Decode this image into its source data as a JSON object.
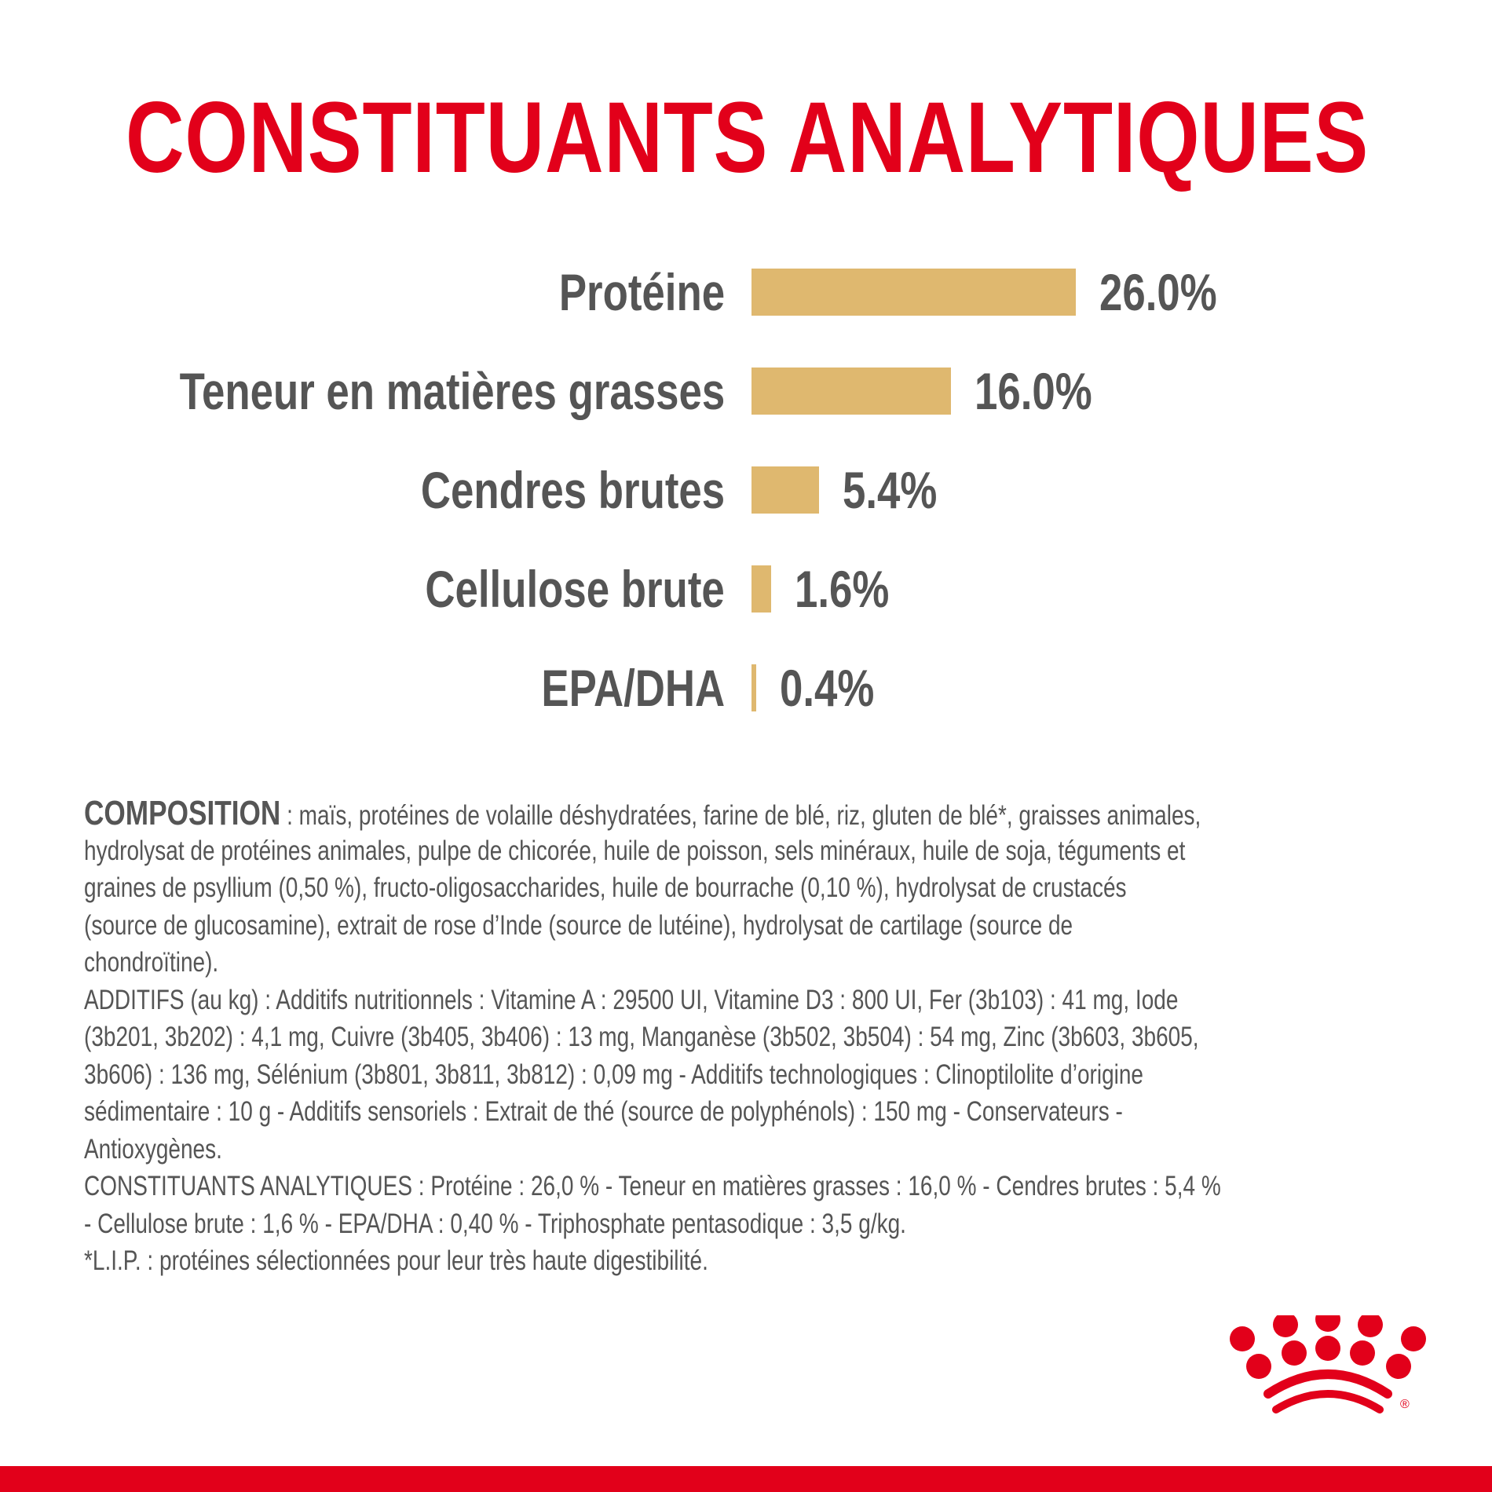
{
  "colors": {
    "brand_red": "#e2001a",
    "bar": "#dfb86f",
    "text": "#555555"
  },
  "title": "CONSTITUANTS ANALYTIQUES",
  "chart_data": {
    "type": "bar",
    "orientation": "horizontal",
    "title": "CONSTITUANTS ANALYTIQUES",
    "categories": [
      "Protéine",
      "Teneur en matières grasses",
      "Cendres brutes",
      "Cellulose brute",
      "EPA/DHA"
    ],
    "values": [
      26.0,
      16.0,
      5.4,
      1.6,
      0.4
    ],
    "data_labels": [
      "26.0%",
      "16.0%",
      "5.4%",
      "1.6%",
      "0.4%"
    ],
    "unit": "%",
    "grid": false,
    "axes_visible": false
  },
  "composition": {
    "heading": "COMPOSITION",
    "lines": [
      " : maïs, protéines de volaille déshydratées, farine de blé, riz, gluten de blé*, graisses animales,",
      "hydrolysat de protéines animales, pulpe de chicorée, huile de poisson, sels minéraux, huile de soja, téguments et",
      "graines de psyllium (0,50 %), fructo-oligosaccharides, huile de bourrache (0,10 %), hydrolysat de crustacés",
      "(source de glucosamine), extrait de rose d’Inde (source de lutéine), hydrolysat de cartilage (source de",
      "chondroïtine).",
      "ADDITIFS (au kg) : Additifs nutritionnels : Vitamine A : 29500 UI, Vitamine D3 : 800 UI, Fer (3b103) : 41 mg, Iode",
      "(3b201, 3b202) : 4,1 mg, Cuivre (3b405, 3b406) : 13 mg, Manganèse (3b502, 3b504) : 54 mg, Zinc (3b603, 3b605,",
      "3b606) : 136 mg, Sélénium (3b801, 3b811, 3b812) : 0,09 mg - Additifs technologiques : Clinoptilolite d’origine",
      "sédimentaire : 10 g - Additifs sensoriels : Extrait de thé (source de polyphénols) : 150 mg - Conservateurs -",
      "Antioxygènes.",
      "CONSTITUANTS ANALYTIQUES : Protéine : 26,0 % - Teneur en matières grasses : 16,0 % - Cendres brutes : 5,4 %",
      "- Cellulose brute : 1,6 % - EPA/DHA : 0,40 % - Triphosphate pentasodique : 3,5 g/kg.",
      "*L.I.P. : protéines sélectionnées pour leur très haute digestibilité."
    ]
  },
  "logo": {
    "icon": "royal-canin-crown-logo",
    "registered_mark": "®"
  }
}
